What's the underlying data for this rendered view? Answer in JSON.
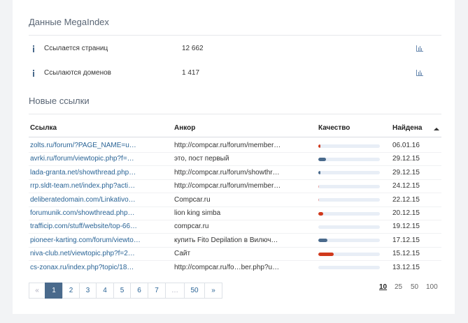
{
  "megaindex": {
    "title": "Данные MegaIndex",
    "rows": [
      {
        "label": "Ссылается страниц",
        "value": "12 662"
      },
      {
        "label": "Ссылаются доменов",
        "value": "1 417"
      }
    ]
  },
  "new_links": {
    "title": "Новые ссылки",
    "columns": [
      "Ссылка",
      "Анкор",
      "Качество",
      "Найдена"
    ],
    "rows": [
      {
        "url": "zolts.ru/forum/?PAGE_NAME=u…",
        "anchor": "http://compcar.ru/forum/member…",
        "quality": 3,
        "quality_color": "#d0391c",
        "date": "06.01.16"
      },
      {
        "url": "avrki.ru/forum/viewtopic.php?f=…",
        "anchor": "это, пост первый",
        "quality": 12,
        "quality_color": "#4a6a8c",
        "date": "29.12.15"
      },
      {
        "url": "lada-granta.net/showthread.php…",
        "anchor": "http://compcar.ru/forum/showthr…",
        "quality": 3,
        "quality_color": "#4a6a8c",
        "date": "29.12.15"
      },
      {
        "url": "rrp.sldt-team.net/index.php?acti…",
        "anchor": "http://compcar.ru/forum/member…",
        "quality": 1,
        "quality_color": "#e8a0a0",
        "date": "24.12.15"
      },
      {
        "url": "deliberatedomain.com/Linkativo…",
        "anchor": "Compcar.ru",
        "quality": 1,
        "quality_color": "#e8a0a0",
        "date": "22.12.15"
      },
      {
        "url": "forumunik.com/showthread.php…",
        "anchor": "lion king simba",
        "quality": 8,
        "quality_color": "#d0391c",
        "date": "20.12.15"
      },
      {
        "url": "trafficip.com/stuff/website/top-66…",
        "anchor": "compcar.ru",
        "quality": 0,
        "quality_color": "#4a6a8c",
        "date": "19.12.15"
      },
      {
        "url": "pioneer-karting.com/forum/viewto…",
        "anchor": "купить Fito Depilation в Вилюч…",
        "quality": 15,
        "quality_color": "#4a6a8c",
        "date": "17.12.15"
      },
      {
        "url": "niva-club.net/viewtopic.php?f=2…",
        "anchor": "Сайт",
        "quality": 25,
        "quality_color": "#d0391c",
        "date": "15.12.15"
      },
      {
        "url": "cs-zonax.ru/index.php?topic/18…",
        "anchor": "http://compcar.ru/fo…ber.php?u…",
        "quality": 0,
        "quality_color": "#4a6a8c",
        "date": "13.12.15"
      }
    ]
  },
  "pagination": {
    "pages": [
      "«",
      "1",
      "2",
      "3",
      "4",
      "5",
      "6",
      "7",
      "…",
      "50",
      "»"
    ],
    "active_index": 1
  },
  "page_sizes": {
    "options": [
      "10",
      "25",
      "50",
      "100"
    ],
    "active_index": 0
  }
}
